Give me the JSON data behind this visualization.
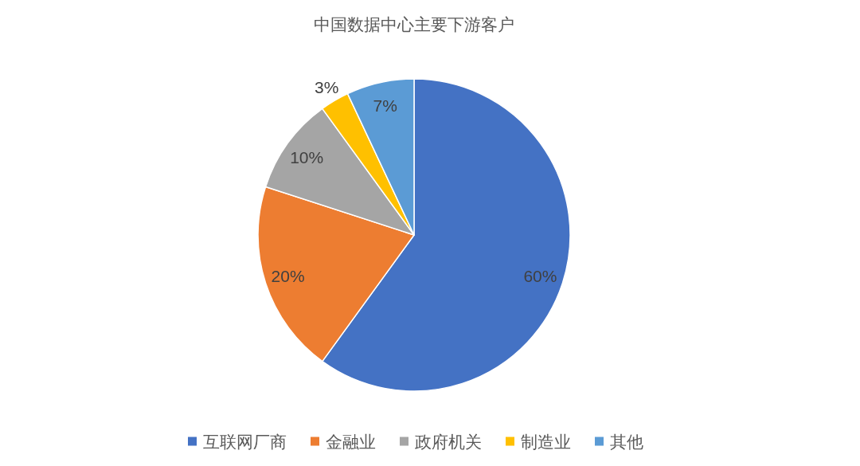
{
  "chart_data": {
    "type": "pie",
    "title": "中国数据中心主要下游客户",
    "categories": [
      "互联网厂商",
      "金融业",
      "政府机关",
      "制造业",
      "其他"
    ],
    "values": [
      60,
      20,
      10,
      3,
      7
    ],
    "colors": [
      "#4472c4",
      "#ed7d31",
      "#a5a5a5",
      "#ffc000",
      "#5b9bd5"
    ],
    "value_labels": [
      "60%",
      "20%",
      "10%",
      "3%",
      "7%"
    ],
    "legend": "bottom"
  }
}
